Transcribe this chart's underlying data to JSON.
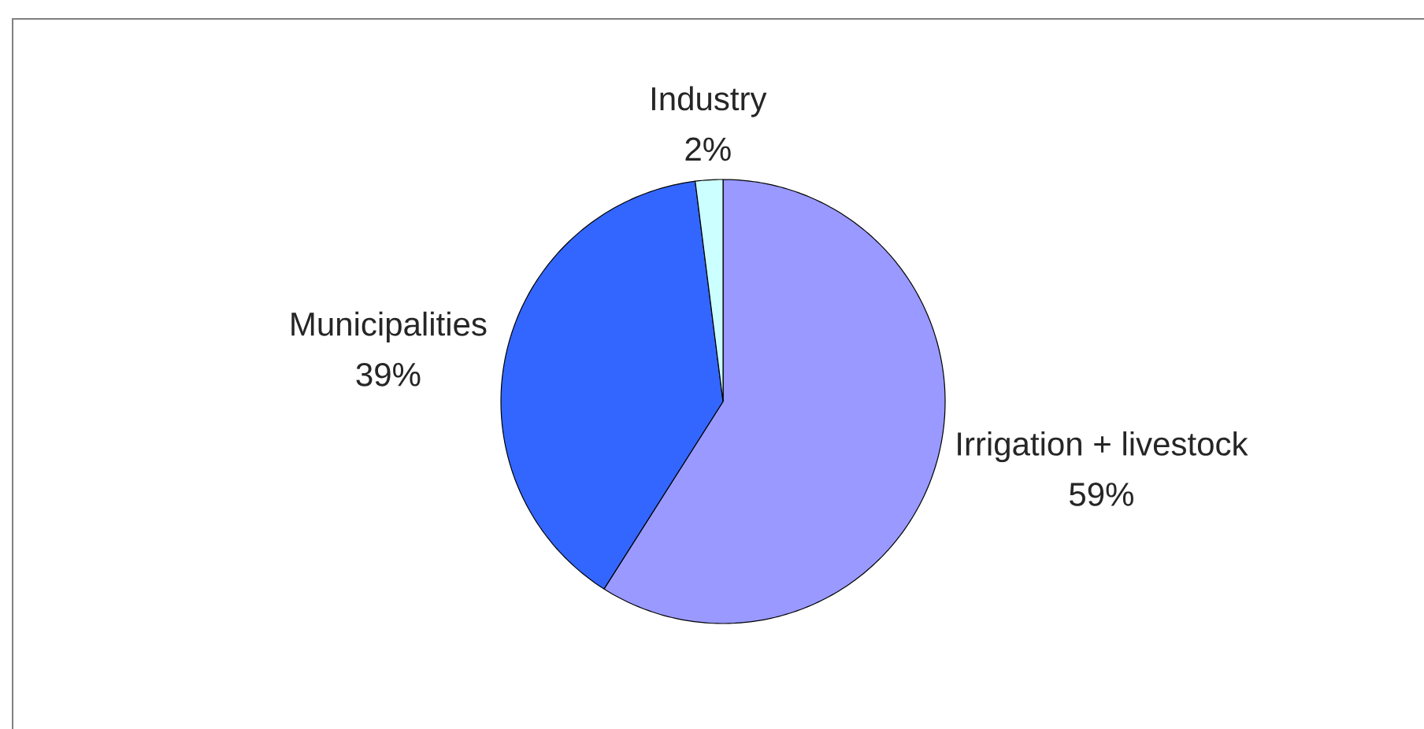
{
  "chart_data": {
    "type": "pie",
    "categories": [
      "Irrigation + livestock",
      "Municipalities",
      "Industry"
    ],
    "values": [
      59,
      39,
      2
    ],
    "value_labels": [
      "59%",
      "39%",
      "2%"
    ],
    "colors": [
      "#9999ff",
      "#3366ff",
      "#ccffff"
    ]
  }
}
